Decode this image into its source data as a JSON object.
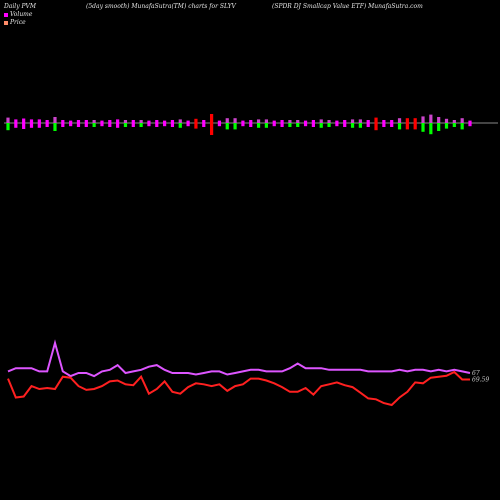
{
  "header": {
    "left": "Daily PVM",
    "center": "(5day smooth) MunafaSutra(TM) charts for SLYV",
    "right": "(SPDR DJ Smallcap Value   ETF) MunafaSutra.com"
  },
  "legend": [
    {
      "label": "Volume",
      "color": "#ff00ff"
    },
    {
      "label": "Price",
      "color": "#ff8c69"
    }
  ],
  "colors": {
    "up_bar": "#ff00ff",
    "down_bar": "#00ff00",
    "loss_bar": "#ff0000",
    "volume_line": "#dd55ff",
    "price_line": "#ff2020",
    "baseline": "#888888"
  },
  "chart_data": {
    "type": "line",
    "x": [
      1,
      2,
      3,
      4,
      5,
      6,
      7,
      8,
      9,
      10,
      11,
      12,
      13,
      14,
      15,
      16,
      17,
      18,
      19,
      20,
      21,
      22,
      23,
      24,
      25,
      26,
      27,
      28,
      29,
      30,
      31,
      32,
      33,
      34,
      35,
      36,
      37,
      38,
      39,
      40,
      41,
      42,
      43,
      44,
      45,
      46,
      47,
      48,
      49,
      50,
      51,
      52,
      53,
      54,
      55,
      56,
      57,
      58,
      59,
      60
    ],
    "series": [
      {
        "name": "Volume",
        "values": [
          1.8,
          2.0,
          2.0,
          2.0,
          1.8,
          1.8,
          3.6,
          1.8,
          1.5,
          1.7,
          1.7,
          1.5,
          1.8,
          1.9,
          2.2,
          1.7,
          1.8,
          1.9,
          2.1,
          2.2,
          1.9,
          1.7,
          1.7,
          1.7,
          1.6,
          1.7,
          1.8,
          1.8,
          1.6,
          1.7,
          1.8,
          1.9,
          1.9,
          1.8,
          1.8,
          1.8,
          2.0,
          2.3,
          2.0,
          2.0,
          2.0,
          1.9,
          1.9,
          1.9,
          1.9,
          1.9,
          1.8,
          1.8,
          1.8,
          1.8,
          1.9,
          1.8,
          1.9,
          1.9,
          1.8,
          1.9,
          1.8,
          1.9,
          1.8,
          1.7
        ],
        "end_label": "67"
      },
      {
        "name": "Price",
        "values": [
          69.2,
          67.2,
          67.3,
          68.4,
          68.1,
          68.2,
          68.1,
          69.4,
          69.3,
          68.4,
          68.0,
          68.1,
          68.4,
          68.9,
          69.0,
          68.6,
          68.5,
          69.4,
          67.6,
          68.1,
          68.9,
          67.8,
          67.6,
          68.3,
          68.7,
          68.6,
          68.4,
          68.6,
          67.9,
          68.4,
          68.6,
          69.2,
          69.2,
          69.0,
          68.7,
          68.3,
          67.8,
          67.8,
          68.2,
          67.5,
          68.4,
          68.6,
          68.8,
          68.5,
          68.3,
          67.7,
          67.1,
          67.0,
          66.6,
          66.4,
          67.2,
          67.8,
          68.8,
          68.7,
          69.3,
          69.4,
          69.5,
          69.9,
          69.1,
          69.1
        ],
        "end_label": "69.59"
      }
    ],
    "bars": [
      {
        "dir": "down",
        "size": 0.9
      },
      {
        "dir": "up",
        "size": 0.6
      },
      {
        "dir": "up",
        "size": 0.75
      },
      {
        "dir": "up",
        "size": 0.6
      },
      {
        "dir": "up",
        "size": 0.6
      },
      {
        "dir": "up",
        "size": 0.5
      },
      {
        "dir": "down",
        "size": 1.0
      },
      {
        "dir": "up",
        "size": 0.5
      },
      {
        "dir": "up",
        "size": 0.4
      },
      {
        "dir": "up",
        "size": 0.5
      },
      {
        "dir": "up",
        "size": 0.5
      },
      {
        "dir": "down",
        "size": 0.5
      },
      {
        "dir": "up",
        "size": 0.4
      },
      {
        "dir": "up",
        "size": 0.5
      },
      {
        "dir": "up",
        "size": 0.6
      },
      {
        "dir": "down",
        "size": 0.5
      },
      {
        "dir": "up",
        "size": 0.5
      },
      {
        "dir": "down",
        "size": 0.5
      },
      {
        "dir": "up",
        "size": 0.4
      },
      {
        "dir": "up",
        "size": 0.5
      },
      {
        "dir": "up",
        "size": 0.4
      },
      {
        "dir": "up",
        "size": 0.5
      },
      {
        "dir": "down",
        "size": 0.6
      },
      {
        "dir": "up",
        "size": 0.4
      },
      {
        "dir": "loss",
        "size": 0.7
      },
      {
        "dir": "up",
        "size": 0.5
      },
      {
        "dir": "loss",
        "size": 1.5
      },
      {
        "dir": "up",
        "size": 0.4
      },
      {
        "dir": "down",
        "size": 0.8
      },
      {
        "dir": "down",
        "size": 0.8
      },
      {
        "dir": "up",
        "size": 0.4
      },
      {
        "dir": "up",
        "size": 0.5
      },
      {
        "dir": "down",
        "size": 0.6
      },
      {
        "dir": "down",
        "size": 0.6
      },
      {
        "dir": "up",
        "size": 0.4
      },
      {
        "dir": "up",
        "size": 0.5
      },
      {
        "dir": "down",
        "size": 0.5
      },
      {
        "dir": "down",
        "size": 0.5
      },
      {
        "dir": "up",
        "size": 0.4
      },
      {
        "dir": "up",
        "size": 0.5
      },
      {
        "dir": "down",
        "size": 0.6
      },
      {
        "dir": "down",
        "size": 0.5
      },
      {
        "dir": "up",
        "size": 0.4
      },
      {
        "dir": "up",
        "size": 0.5
      },
      {
        "dir": "down",
        "size": 0.6
      },
      {
        "dir": "down",
        "size": 0.6
      },
      {
        "dir": "up",
        "size": 0.5
      },
      {
        "dir": "loss",
        "size": 0.9
      },
      {
        "dir": "up",
        "size": 0.5
      },
      {
        "dir": "up",
        "size": 0.5
      },
      {
        "dir": "down",
        "size": 0.8
      },
      {
        "dir": "loss",
        "size": 0.8
      },
      {
        "dir": "loss",
        "size": 0.8
      },
      {
        "dir": "down",
        "size": 1.1
      },
      {
        "dir": "down",
        "size": 1.4
      },
      {
        "dir": "down",
        "size": 1.0
      },
      {
        "dir": "down",
        "size": 0.7
      },
      {
        "dir": "down",
        "size": 0.5
      },
      {
        "dir": "down",
        "size": 0.8
      },
      {
        "dir": "up",
        "size": 0.4
      }
    ],
    "title": "",
    "xlabel": "",
    "ylabel": "",
    "grid": false,
    "legend_position": "top-left"
  }
}
